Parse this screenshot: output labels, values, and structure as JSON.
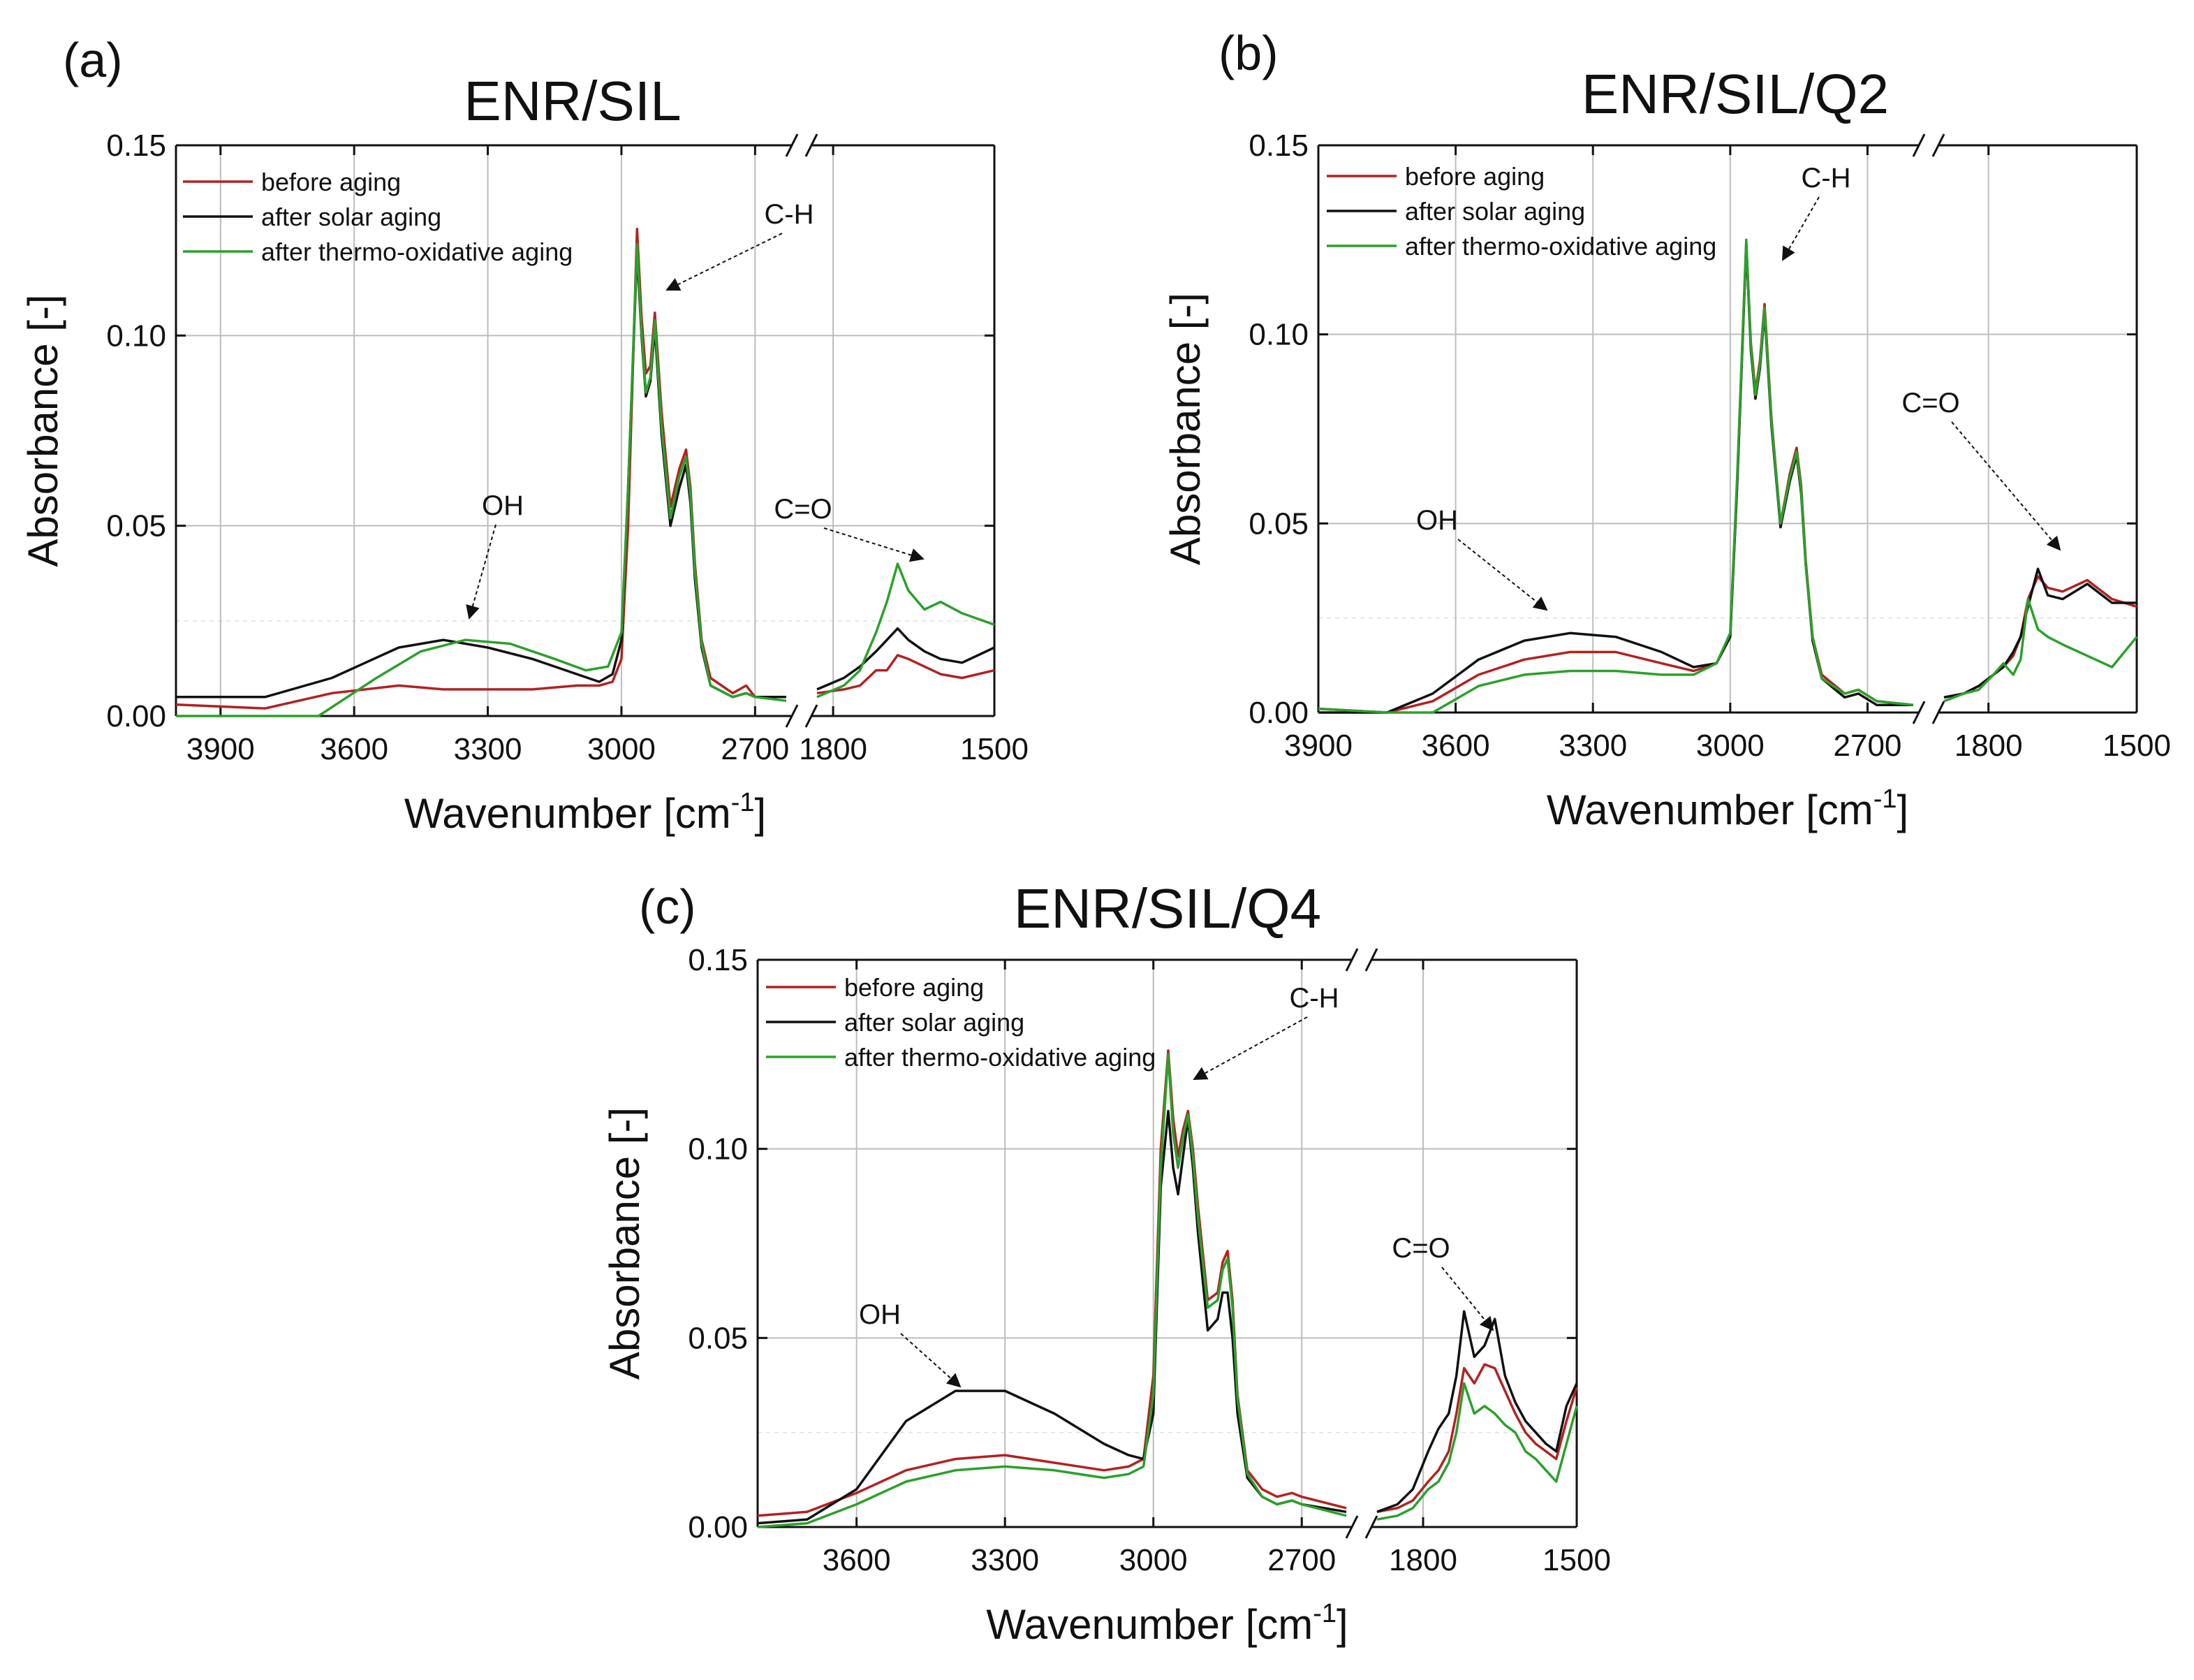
{
  "figure": {
    "xlabel": "Wavenumber [cm",
    "xlabel_sup": "-1",
    "xlabel_end": "]",
    "ylabel": "Absorbance [-]"
  },
  "legend": [
    "before aging",
    "after solar aging",
    "after thermo-oxidative aging"
  ],
  "colors": {
    "before": "#b22222",
    "solar": "#111111",
    "thermo": "#2ca02c",
    "grid": "#bdbdbd"
  },
  "chart_data": [
    {
      "type": "line",
      "panel": "(a)",
      "title": "ENR/SIL",
      "ylim": [
        0,
        0.15
      ],
      "yticks": [
        "0.00",
        "0.05",
        "0.10",
        "0.15"
      ],
      "xticks_left": [
        "3900",
        "3600",
        "3300",
        "3000",
        "2700"
      ],
      "xticks_right": [
        "1800",
        "1500"
      ],
      "segments": [
        [
          4000,
          2630
        ],
        [
          1830,
          1500
        ]
      ],
      "grid": true,
      "legend_position": "top-left",
      "annotations": [
        "C-H",
        "OH",
        "C=O"
      ],
      "series": [
        {
          "name": "before aging",
          "key": "before",
          "x": [
            4000,
            3800,
            3650,
            3500,
            3400,
            3300,
            3200,
            3100,
            3050,
            3020,
            3000,
            2985,
            2965,
            2955,
            2945,
            2935,
            2925,
            2910,
            2890,
            2870,
            2855,
            2845,
            2835,
            2820,
            2800,
            2750,
            2720,
            2700,
            2630,
            1830,
            1780,
            1750,
            1720,
            1700,
            1680,
            1660,
            1630,
            1600,
            1560,
            1500
          ],
          "y": [
            0.003,
            0.002,
            0.006,
            0.008,
            0.007,
            0.007,
            0.007,
            0.008,
            0.008,
            0.009,
            0.015,
            0.05,
            0.128,
            0.105,
            0.09,
            0.092,
            0.106,
            0.08,
            0.055,
            0.065,
            0.07,
            0.06,
            0.04,
            0.02,
            0.01,
            0.006,
            0.008,
            0.005,
            0.005,
            0.006,
            0.007,
            0.008,
            0.012,
            0.012,
            0.016,
            0.015,
            0.013,
            0.011,
            0.01,
            0.012
          ]
        },
        {
          "name": "after solar aging",
          "key": "solar",
          "x": [
            4000,
            3800,
            3650,
            3500,
            3400,
            3300,
            3200,
            3100,
            3050,
            3020,
            3000,
            2985,
            2965,
            2955,
            2945,
            2935,
            2925,
            2910,
            2890,
            2870,
            2855,
            2845,
            2835,
            2820,
            2800,
            2750,
            2720,
            2700,
            2630,
            1830,
            1780,
            1750,
            1720,
            1700,
            1680,
            1660,
            1630,
            1600,
            1560,
            1500
          ],
          "y": [
            0.005,
            0.005,
            0.01,
            0.018,
            0.02,
            0.018,
            0.015,
            0.011,
            0.009,
            0.011,
            0.02,
            0.06,
            0.122,
            0.1,
            0.084,
            0.088,
            0.102,
            0.074,
            0.05,
            0.06,
            0.066,
            0.056,
            0.036,
            0.018,
            0.008,
            0.005,
            0.006,
            0.005,
            0.005,
            0.007,
            0.01,
            0.013,
            0.017,
            0.02,
            0.023,
            0.02,
            0.017,
            0.015,
            0.014,
            0.018
          ]
        },
        {
          "name": "after thermo-oxidative aging",
          "key": "thermo",
          "x": [
            4000,
            3800,
            3680,
            3550,
            3450,
            3350,
            3250,
            3150,
            3080,
            3030,
            3000,
            2985,
            2965,
            2955,
            2945,
            2935,
            2925,
            2910,
            2890,
            2870,
            2855,
            2845,
            2835,
            2820,
            2800,
            2750,
            2720,
            2700,
            2630,
            1830,
            1780,
            1750,
            1720,
            1700,
            1680,
            1660,
            1630,
            1600,
            1560,
            1500
          ],
          "y": [
            0.0,
            0.0,
            0.0,
            0.01,
            0.017,
            0.02,
            0.019,
            0.015,
            0.012,
            0.013,
            0.022,
            0.06,
            0.124,
            0.101,
            0.085,
            0.089,
            0.104,
            0.076,
            0.052,
            0.063,
            0.068,
            0.058,
            0.038,
            0.019,
            0.008,
            0.005,
            0.006,
            0.005,
            0.004,
            0.005,
            0.008,
            0.012,
            0.022,
            0.03,
            0.04,
            0.033,
            0.028,
            0.03,
            0.027,
            0.024
          ]
        }
      ]
    },
    {
      "type": "line",
      "panel": "(b)",
      "title": "ENR/SIL/Q2",
      "ylim": [
        0,
        0.15
      ],
      "yticks": [
        "0.00",
        "0.05",
        "0.10",
        "0.15"
      ],
      "xticks_left": [
        "3900",
        "3600",
        "3300",
        "3000",
        "2700"
      ],
      "xticks_right": [
        "1800",
        "1500"
      ],
      "segments": [
        [
          3900,
          2600
        ],
        [
          1890,
          1500
        ]
      ],
      "grid": true,
      "legend_position": "top-left",
      "annotations": [
        "C-H",
        "OH",
        "C=O"
      ],
      "series": [
        {
          "name": "before aging",
          "key": "before",
          "x": [
            3900,
            3750,
            3650,
            3550,
            3450,
            3350,
            3250,
            3150,
            3080,
            3030,
            3000,
            2985,
            2965,
            2955,
            2945,
            2935,
            2925,
            2910,
            2890,
            2870,
            2855,
            2845,
            2835,
            2820,
            2800,
            2750,
            2720,
            2680,
            2600,
            1890,
            1850,
            1820,
            1790,
            1770,
            1750,
            1735,
            1720,
            1700,
            1680,
            1650,
            1600,
            1550,
            1500
          ],
          "y": [
            0.001,
            0.0,
            0.003,
            0.01,
            0.014,
            0.016,
            0.016,
            0.013,
            0.011,
            0.013,
            0.02,
            0.06,
            0.124,
            0.098,
            0.085,
            0.093,
            0.108,
            0.078,
            0.05,
            0.063,
            0.07,
            0.06,
            0.04,
            0.02,
            0.01,
            0.005,
            0.006,
            0.003,
            0.002,
            0.004,
            0.005,
            0.007,
            0.01,
            0.012,
            0.015,
            0.02,
            0.03,
            0.036,
            0.033,
            0.032,
            0.035,
            0.03,
            0.028
          ]
        },
        {
          "name": "after solar aging",
          "key": "solar",
          "x": [
            3900,
            3750,
            3650,
            3550,
            3450,
            3350,
            3250,
            3150,
            3080,
            3030,
            3000,
            2985,
            2965,
            2955,
            2945,
            2935,
            2925,
            2910,
            2890,
            2870,
            2855,
            2845,
            2835,
            2820,
            2800,
            2750,
            2720,
            2680,
            2600,
            1890,
            1850,
            1820,
            1790,
            1770,
            1750,
            1735,
            1720,
            1700,
            1680,
            1650,
            1600,
            1550,
            1500
          ],
          "y": [
            0.0,
            0.0,
            0.005,
            0.014,
            0.019,
            0.021,
            0.02,
            0.016,
            0.012,
            0.013,
            0.02,
            0.06,
            0.124,
            0.096,
            0.083,
            0.091,
            0.106,
            0.076,
            0.049,
            0.061,
            0.068,
            0.058,
            0.039,
            0.019,
            0.009,
            0.004,
            0.005,
            0.002,
            0.002,
            0.004,
            0.005,
            0.007,
            0.01,
            0.012,
            0.016,
            0.02,
            0.028,
            0.038,
            0.031,
            0.03,
            0.034,
            0.029,
            0.029
          ]
        },
        {
          "name": "after thermo-oxidative aging",
          "key": "thermo",
          "x": [
            3900,
            3750,
            3650,
            3550,
            3450,
            3350,
            3250,
            3150,
            3080,
            3030,
            3000,
            2985,
            2965,
            2955,
            2945,
            2935,
            2925,
            2910,
            2890,
            2870,
            2855,
            2845,
            2835,
            2820,
            2800,
            2750,
            2720,
            2680,
            2600,
            1890,
            1850,
            1820,
            1790,
            1770,
            1750,
            1735,
            1720,
            1700,
            1680,
            1650,
            1600,
            1550,
            1500
          ],
          "y": [
            0.001,
            0.0,
            0.0,
            0.007,
            0.01,
            0.011,
            0.011,
            0.01,
            0.01,
            0.013,
            0.021,
            0.062,
            0.125,
            0.097,
            0.084,
            0.092,
            0.107,
            0.077,
            0.05,
            0.062,
            0.069,
            0.059,
            0.039,
            0.02,
            0.009,
            0.005,
            0.006,
            0.003,
            0.002,
            0.003,
            0.005,
            0.006,
            0.01,
            0.013,
            0.01,
            0.014,
            0.03,
            0.022,
            0.02,
            0.018,
            0.015,
            0.012,
            0.02
          ]
        }
      ]
    },
    {
      "type": "line",
      "panel": "(c)",
      "title": "ENR/SIL/Q4",
      "ylim": [
        0,
        0.15
      ],
      "yticks": [
        "0.00",
        "0.05",
        "0.10",
        "0.15"
      ],
      "xticks_left": [
        "3600",
        "3300",
        "3000",
        "2700"
      ],
      "xticks_right": [
        "1800",
        "1500"
      ],
      "segments": [
        [
          3800,
          2610
        ],
        [
          1890,
          1500
        ]
      ],
      "grid": true,
      "legend_position": "top-left",
      "annotations": [
        "C-H",
        "OH",
        "C=O"
      ],
      "series": [
        {
          "name": "before aging",
          "key": "before",
          "x": [
            3800,
            3700,
            3600,
            3500,
            3400,
            3300,
            3200,
            3100,
            3050,
            3020,
            3000,
            2985,
            2970,
            2960,
            2950,
            2940,
            2930,
            2920,
            2910,
            2890,
            2870,
            2860,
            2850,
            2840,
            2830,
            2810,
            2780,
            2750,
            2720,
            2700,
            2610,
            1890,
            1850,
            1820,
            1790,
            1770,
            1750,
            1735,
            1720,
            1700,
            1680,
            1660,
            1640,
            1620,
            1600,
            1580,
            1560,
            1540,
            1520,
            1500
          ],
          "y": [
            0.003,
            0.004,
            0.009,
            0.015,
            0.018,
            0.019,
            0.017,
            0.015,
            0.016,
            0.018,
            0.04,
            0.1,
            0.126,
            0.108,
            0.098,
            0.105,
            0.11,
            0.1,
            0.085,
            0.06,
            0.062,
            0.07,
            0.073,
            0.06,
            0.035,
            0.015,
            0.01,
            0.008,
            0.009,
            0.008,
            0.005,
            0.004,
            0.005,
            0.007,
            0.012,
            0.015,
            0.02,
            0.03,
            0.042,
            0.038,
            0.043,
            0.042,
            0.036,
            0.03,
            0.025,
            0.022,
            0.02,
            0.018,
            0.028,
            0.037
          ]
        },
        {
          "name": "after solar aging",
          "key": "solar",
          "x": [
            3800,
            3700,
            3600,
            3500,
            3400,
            3300,
            3200,
            3100,
            3050,
            3020,
            3000,
            2985,
            2970,
            2960,
            2950,
            2940,
            2930,
            2920,
            2910,
            2890,
            2870,
            2860,
            2850,
            2840,
            2830,
            2810,
            2780,
            2750,
            2720,
            2700,
            2610,
            1890,
            1850,
            1820,
            1790,
            1770,
            1750,
            1735,
            1720,
            1700,
            1680,
            1660,
            1640,
            1620,
            1600,
            1580,
            1560,
            1540,
            1520,
            1500
          ],
          "y": [
            0.001,
            0.002,
            0.01,
            0.028,
            0.036,
            0.036,
            0.03,
            0.022,
            0.019,
            0.018,
            0.03,
            0.09,
            0.11,
            0.095,
            0.088,
            0.098,
            0.108,
            0.095,
            0.078,
            0.052,
            0.055,
            0.062,
            0.062,
            0.05,
            0.03,
            0.013,
            0.008,
            0.006,
            0.007,
            0.006,
            0.004,
            0.004,
            0.006,
            0.01,
            0.02,
            0.026,
            0.03,
            0.04,
            0.057,
            0.045,
            0.048,
            0.055,
            0.04,
            0.033,
            0.028,
            0.025,
            0.022,
            0.02,
            0.032,
            0.038
          ]
        },
        {
          "name": "after thermo-oxidative aging",
          "key": "thermo",
          "x": [
            3800,
            3700,
            3600,
            3500,
            3400,
            3300,
            3200,
            3100,
            3050,
            3020,
            3000,
            2985,
            2970,
            2960,
            2950,
            2940,
            2930,
            2920,
            2910,
            2890,
            2870,
            2860,
            2850,
            2840,
            2830,
            2810,
            2780,
            2750,
            2720,
            2700,
            2610,
            1890,
            1850,
            1820,
            1790,
            1770,
            1750,
            1735,
            1720,
            1700,
            1680,
            1660,
            1640,
            1620,
            1600,
            1580,
            1560,
            1540,
            1520,
            1500
          ],
          "y": [
            0.0,
            0.001,
            0.006,
            0.012,
            0.015,
            0.016,
            0.015,
            0.013,
            0.014,
            0.016,
            0.035,
            0.095,
            0.125,
            0.104,
            0.095,
            0.103,
            0.109,
            0.098,
            0.082,
            0.058,
            0.06,
            0.068,
            0.071,
            0.058,
            0.034,
            0.014,
            0.008,
            0.006,
            0.007,
            0.006,
            0.003,
            0.002,
            0.003,
            0.005,
            0.01,
            0.012,
            0.017,
            0.025,
            0.038,
            0.03,
            0.032,
            0.03,
            0.027,
            0.025,
            0.02,
            0.018,
            0.015,
            0.012,
            0.022,
            0.032
          ]
        }
      ]
    }
  ]
}
